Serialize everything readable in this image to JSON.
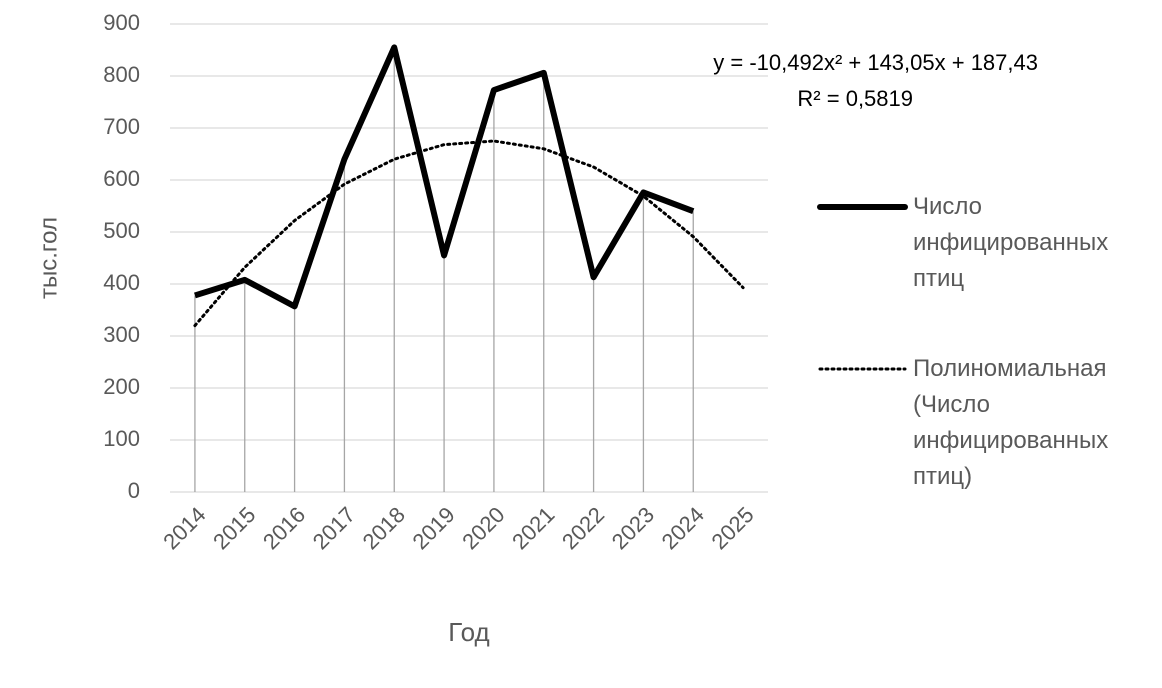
{
  "chart_data": {
    "type": "line",
    "y_label": "тыс.гол",
    "x_label": "Год",
    "categories": [
      "2014",
      "2015",
      "2016",
      "2017",
      "2018",
      "2019",
      "2020",
      "2021",
      "2022",
      "2023",
      "2024",
      "2025"
    ],
    "series": [
      {
        "name": "Число инфицированных птиц",
        "color": "#000000",
        "dash": "solid",
        "values": [
          378,
          408,
          357,
          640,
          855,
          455,
          773,
          806,
          413,
          576,
          540,
          null
        ]
      },
      {
        "name": "Полиномиальная (Число инфицированных птиц)",
        "color": "#000000",
        "dash": "dotted",
        "values": [
          320,
          432,
          522,
          592,
          640,
          668,
          675,
          660,
          625,
          569,
          491,
          393
        ]
      }
    ],
    "trendline_equation": "y = -10,492x² + 143,05x + 187,43",
    "trendline_r2": "R² = 0,5819",
    "ylim": [
      0,
      900
    ],
    "yticks": [
      0,
      100,
      200,
      300,
      400,
      500,
      600,
      700,
      800,
      900
    ],
    "grid": true,
    "drop_lines": true,
    "legend": "right"
  }
}
